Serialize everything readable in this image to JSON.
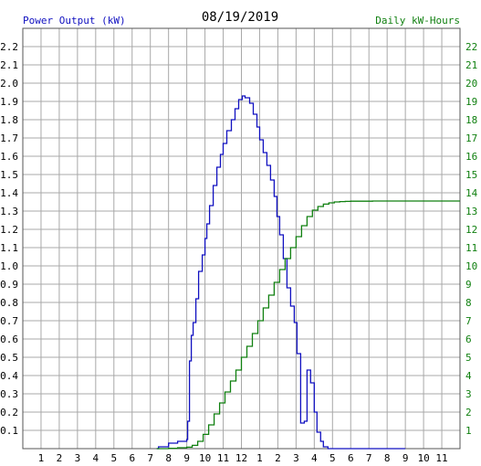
{
  "header": {
    "left_title": "Power Output (kW)",
    "center_title": "08/19/2019",
    "right_title": "Daily kW-Hours"
  },
  "chart_data": {
    "type": "line",
    "title": "08/19/2019",
    "grid": true,
    "legend": "none",
    "x_tick_labels": [
      "1",
      "2",
      "3",
      "4",
      "5",
      "6",
      "7",
      "8",
      "9",
      "10",
      "11",
      "12",
      "1",
      "2",
      "3",
      "4",
      "5",
      "6",
      "7",
      "8",
      "9",
      "10",
      "11"
    ],
    "x_ticks_hours": [
      1,
      2,
      3,
      4,
      5,
      6,
      7,
      8,
      9,
      10,
      11,
      12,
      13,
      14,
      15,
      16,
      17,
      18,
      19,
      20,
      21,
      22,
      23
    ],
    "xlim_hours": [
      0,
      24
    ],
    "left_axis": {
      "label": "Power Output (kW)",
      "ylim": [
        0,
        2.3
      ],
      "ticks": [
        "0.1",
        "0.2",
        "0.3",
        "0.4",
        "0.5",
        "0.6",
        "0.7",
        "0.8",
        "0.9",
        "1.0",
        "1.1",
        "1.2",
        "1.3",
        "1.4",
        "1.5",
        "1.6",
        "1.7",
        "1.8",
        "1.9",
        "2.0",
        "2.1",
        "2.2"
      ],
      "color": "#1010c0"
    },
    "right_axis": {
      "label": "Daily kW-Hours",
      "ylim": [
        0,
        23
      ],
      "ticks": [
        "1",
        "2",
        "3",
        "4",
        "5",
        "6",
        "7",
        "8",
        "9",
        "10",
        "11",
        "12",
        "13",
        "14",
        "15",
        "16",
        "17",
        "18",
        "19",
        "20",
        "21",
        "22"
      ],
      "color": "#108010"
    },
    "series": [
      {
        "axis": "left",
        "color": "#1010c0",
        "x_hours": [
          7.35,
          7.45,
          8.0,
          8.5,
          9.0,
          9.05,
          9.15,
          9.25,
          9.35,
          9.5,
          9.65,
          9.85,
          10.0,
          10.1,
          10.25,
          10.45,
          10.65,
          10.85,
          11.0,
          11.2,
          11.45,
          11.65,
          11.85,
          12.05,
          12.2,
          12.45,
          12.65,
          12.85,
          13.0,
          13.2,
          13.4,
          13.6,
          13.8,
          13.95,
          14.1,
          14.3,
          14.5,
          14.7,
          14.9,
          15.05,
          15.25,
          15.45,
          15.6,
          15.8,
          16.0,
          16.15,
          16.35,
          16.5,
          16.75,
          16.9,
          17.1,
          17.3,
          17.5,
          17.7,
          17.9,
          18.1,
          18.25,
          18.35,
          18.55,
          18.7,
          18.85,
          19.0,
          19.2,
          19.4,
          19.6,
          19.8,
          20.0,
          20.2,
          20.5,
          21.0
        ],
        "y_kw": [
          0.0,
          0.01,
          0.03,
          0.04,
          0.05,
          0.15,
          0.48,
          0.62,
          0.69,
          0.82,
          0.97,
          1.06,
          1.15,
          1.23,
          1.33,
          1.44,
          1.54,
          1.61,
          1.67,
          1.74,
          1.8,
          1.86,
          1.91,
          1.93,
          1.92,
          1.89,
          1.83,
          1.76,
          1.69,
          1.62,
          1.55,
          1.47,
          1.38,
          1.27,
          1.17,
          1.04,
          0.88,
          0.78,
          0.69,
          0.52,
          0.14,
          0.15,
          0.43,
          0.36,
          0.2,
          0.09,
          0.04,
          0.01,
          0.0,
          0.0,
          0.0,
          0.0,
          0.0,
          0.0,
          0.0,
          0.0,
          0.0,
          0.0,
          0.0,
          0.0,
          0.0,
          0.0,
          0.0,
          0.0,
          0.0,
          0.0,
          0.0,
          0.0,
          0.0,
          0.0
        ]
      },
      {
        "axis": "right",
        "color": "#108010",
        "x_hours": [
          7.35,
          8.0,
          8.5,
          9.0,
          9.3,
          9.6,
          9.9,
          10.2,
          10.5,
          10.8,
          11.1,
          11.4,
          11.7,
          12.0,
          12.3,
          12.6,
          12.9,
          13.2,
          13.5,
          13.8,
          14.1,
          14.4,
          14.7,
          15.0,
          15.3,
          15.6,
          15.9,
          16.2,
          16.5,
          16.8,
          17.1,
          17.4,
          17.7,
          18.0,
          18.3,
          18.6,
          18.9,
          19.2,
          19.5,
          19.8,
          20.1,
          21.0,
          22.0,
          23.0,
          24.0
        ],
        "y_kwh": [
          0.0,
          0.02,
          0.05,
          0.08,
          0.18,
          0.4,
          0.78,
          1.3,
          1.9,
          2.5,
          3.1,
          3.7,
          4.3,
          5.0,
          5.6,
          6.3,
          7.0,
          7.7,
          8.4,
          9.1,
          9.8,
          10.4,
          11.0,
          11.6,
          12.2,
          12.7,
          13.05,
          13.25,
          13.38,
          13.45,
          13.5,
          13.52,
          13.53,
          13.54,
          13.54,
          13.54,
          13.54,
          13.55,
          13.55,
          13.55,
          13.55,
          13.55,
          13.55,
          13.55,
          13.55
        ]
      }
    ]
  }
}
